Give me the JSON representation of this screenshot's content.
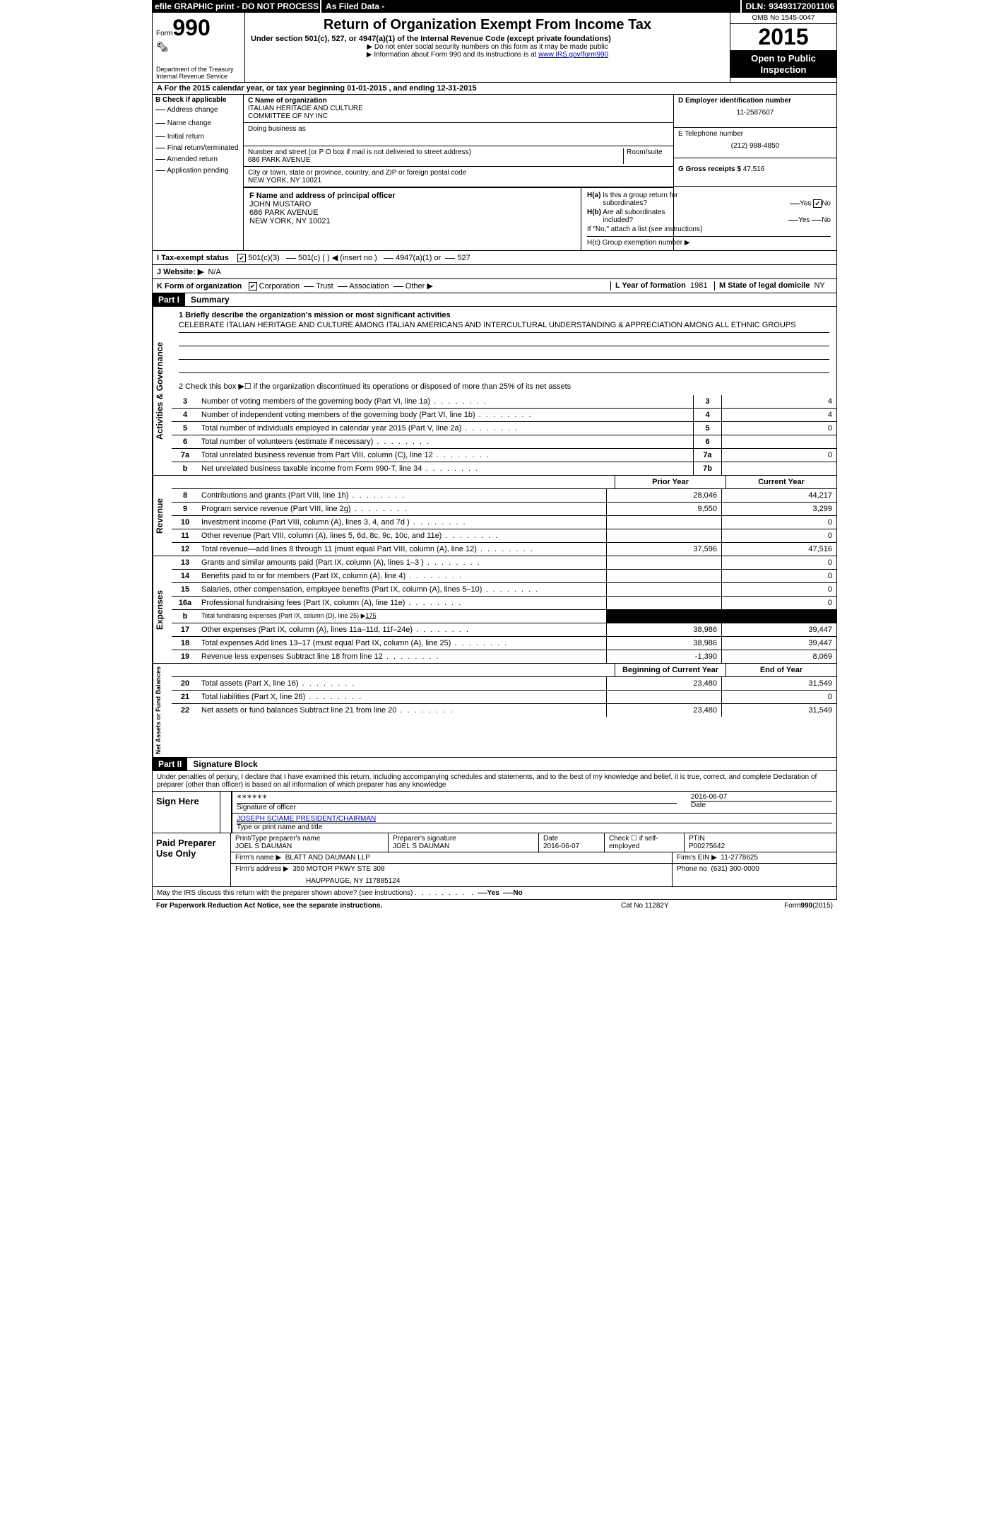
{
  "top_bar": {
    "efile": "efile GRAPHIC print - DO NOT PROCESS",
    "asfiled": "As Filed Data -",
    "dln_label": "DLN:",
    "dln": "93493172001106"
  },
  "header": {
    "form_label": "Form",
    "form_num": "990",
    "dept1": "Department of the Treasury",
    "dept2": "Internal Revenue Service",
    "title": "Return of Organization Exempt From Income Tax",
    "subtitle": "Under section 501(c), 527, or 4947(a)(1) of the Internal Revenue Code (except private foundations)",
    "note1": "▶ Do not enter social security numbers on this form as it may be made public",
    "note2_pre": "▶ Information about Form 990 and its instructions is at ",
    "note2_link": "www.IRS.gov/form990",
    "omb": "OMB No  1545-0047",
    "year": "2015",
    "open_public": "Open to Public Inspection"
  },
  "line_a": {
    "prefix": "A  For the 2015 calendar year, or tax year beginning ",
    "begin": "01-01-2015",
    "mid": "   , and ending ",
    "end": "12-31-2015"
  },
  "col_b": {
    "label": "B  Check if applicable",
    "items": [
      "Address change",
      "Name change",
      "Initial return",
      "Final return/terminated",
      "Amended return",
      "Application pending"
    ]
  },
  "col_c": {
    "name_label": "C Name of organization",
    "name1": "ITALIAN HERITAGE AND CULTURE",
    "name2": "COMMITTEE OF NY INC",
    "dba_label": "Doing business as",
    "addr_label": "Number and street (or P O  box if mail is not delivered to street address)",
    "room_label": "Room/suite",
    "addr": "686 PARK AVENUE",
    "city_label": "City or town, state or province, country, and ZIP or foreign postal code",
    "city": "NEW YORK, NY  10021",
    "f_label": "F   Name and address of principal officer",
    "f_name": "JOHN MUSTARO",
    "f_addr1": "686 PARK AVENUE",
    "f_addr2": "NEW YORK, NY  10021"
  },
  "col_d": {
    "ein_label": "D Employer identification number",
    "ein": "11-2587607",
    "phone_label": "E Telephone number",
    "phone": "(212) 988-4850",
    "gross_label": "G Gross receipts $",
    "gross": "47,516",
    "ha_label": "H(a)  Is this a group return for subordinates?",
    "hb_label": "H(b)  Are all subordinates included?",
    "hb_note": "If \"No,\" attach a list  (see instructions)",
    "hc_label": "H(c)  Group exemption number ▶",
    "yes": "Yes",
    "no": "No"
  },
  "row_i": {
    "label": "I   Tax-exempt status",
    "opt1": "501(c)(3)",
    "opt2": "501(c) (  ) ◀ (insert no )",
    "opt3": "4947(a)(1) or",
    "opt4": "527"
  },
  "row_j": {
    "label": "J  Website: ▶",
    "val": "N/A"
  },
  "row_k": {
    "label": "K Form of organization",
    "opts": [
      "Corporation",
      "Trust",
      "Association",
      "Other ▶"
    ],
    "l_label": "L Year of formation",
    "l_val": "1981",
    "m_label": "M State of legal domicile",
    "m_val": "NY"
  },
  "part1": {
    "header": "Part I",
    "title": "Summary",
    "mission_label": "1 Briefly describe the organization's mission or most significant activities",
    "mission": "CELEBRATE ITALIAN HERITAGE AND CULTURE AMONG ITALIAN AMERICANS AND INTERCULTURAL UNDERSTANDING & APPRECIATION AMONG ALL ETHNIC GROUPS",
    "line2": "2  Check this box ▶☐ if the organization discontinued its operations or disposed of more than 25% of its net assets"
  },
  "governance": {
    "label": "Activities & Governance",
    "rows": [
      {
        "n": "3",
        "t": "Number of voting members of the governing body (Part VI, line 1a)",
        "box": "3",
        "v": "4"
      },
      {
        "n": "4",
        "t": "Number of independent voting members of the governing body (Part VI, line 1b)",
        "box": "4",
        "v": "4"
      },
      {
        "n": "5",
        "t": "Total number of individuals employed in calendar year 2015 (Part V, line 2a)",
        "box": "5",
        "v": "0"
      },
      {
        "n": "6",
        "t": "Total number of volunteers (estimate if necessary)",
        "box": "6",
        "v": ""
      },
      {
        "n": "7a",
        "t": "Total unrelated business revenue from Part VIII, column (C), line 12",
        "box": "7a",
        "v": "0"
      },
      {
        "n": "b",
        "t": "Net unrelated business taxable income from Form 990-T, line 34",
        "box": "7b",
        "v": ""
      }
    ]
  },
  "col_headers": {
    "prior": "Prior Year",
    "current": "Current Year",
    "boy": "Beginning of Current Year",
    "eoy": "End of Year"
  },
  "revenue": {
    "label": "Revenue",
    "rows": [
      {
        "n": "8",
        "t": "Contributions and grants (Part VIII, line 1h)",
        "p": "28,046",
        "c": "44,217"
      },
      {
        "n": "9",
        "t": "Program service revenue (Part VIII, line 2g)",
        "p": "9,550",
        "c": "3,299"
      },
      {
        "n": "10",
        "t": "Investment income (Part VIII, column (A), lines 3, 4, and 7d )",
        "p": "",
        "c": "0"
      },
      {
        "n": "11",
        "t": "Other revenue (Part VIII, column (A), lines 5, 6d, 8c, 9c, 10c, and 11e)",
        "p": "",
        "c": "0"
      },
      {
        "n": "12",
        "t": "Total revenue—add lines 8 through 11 (must equal Part VIII, column (A), line 12)",
        "p": "37,596",
        "c": "47,516"
      }
    ]
  },
  "expenses": {
    "label": "Expenses",
    "rows": [
      {
        "n": "13",
        "t": "Grants and similar amounts paid (Part IX, column (A), lines 1–3 )",
        "p": "",
        "c": "0"
      },
      {
        "n": "14",
        "t": "Benefits paid to or for members (Part IX, column (A), line 4)",
        "p": "",
        "c": "0"
      },
      {
        "n": "15",
        "t": "Salaries, other compensation, employee benefits (Part IX, column (A), lines 5–10)",
        "p": "",
        "c": "0"
      },
      {
        "n": "16a",
        "t": "Professional fundraising fees (Part IX, column (A), line 11e)",
        "p": "",
        "c": "0"
      },
      {
        "n": "b",
        "t": "Total fundraising expenses (Part IX, column (D), line 25) ▶",
        "sub": "175",
        "black": true
      },
      {
        "n": "17",
        "t": "Other expenses (Part IX, column (A), lines 11a–11d, 11f–24e)",
        "p": "38,986",
        "c": "39,447"
      },
      {
        "n": "18",
        "t": "Total expenses  Add lines 13–17 (must equal Part IX, column (A), line 25)",
        "p": "38,986",
        "c": "39,447"
      },
      {
        "n": "19",
        "t": "Revenue less expenses  Subtract line 18 from line 12",
        "p": "-1,390",
        "c": "8,069"
      }
    ]
  },
  "netassets": {
    "label": "Net Assets or Fund Balances",
    "rows": [
      {
        "n": "20",
        "t": "Total assets (Part X, line 16)",
        "p": "23,480",
        "c": "31,549"
      },
      {
        "n": "21",
        "t": "Total liabilities (Part X, line 26)",
        "p": "",
        "c": "0"
      },
      {
        "n": "22",
        "t": "Net assets or fund balances  Subtract line 21 from line 20",
        "p": "23,480",
        "c": "31,549"
      }
    ]
  },
  "part2": {
    "header": "Part II",
    "title": "Signature Block",
    "penalty": "Under penalties of perjury, I declare that I have examined this return, including accompanying schedules and statements, and to the best of my knowledge and belief, it is true, correct, and complete  Declaration of preparer (other than officer) is based on all information of which preparer has any knowledge"
  },
  "sign_here": {
    "label": "Sign Here",
    "stars": "******",
    "sig_label": "Signature of officer",
    "date": "2016-06-07",
    "date_label": "Date",
    "name": "JOSEPH SCIAME  PRESIDENT/CHAIRMAN",
    "name_label": "Type or print name and title"
  },
  "preparer": {
    "label": "Paid Preparer Use Only",
    "r1": {
      "c1_label": "Print/Type preparer's name",
      "c1": "JOEL S DAUMAN",
      "c2_label": "Preparer's signature",
      "c2": "JOEL S DAUMAN",
      "c3_label": "Date",
      "c3": "2016-06-07",
      "c4_label": "Check ☐ if self-employed",
      "c5_label": "PTIN",
      "c5": "P00275642"
    },
    "r2": {
      "firm_label": "Firm's name    ▶",
      "firm": "BLATT AND DAUMAN LLP",
      "ein_label": "Firm's EIN ▶",
      "ein": "11-2778625"
    },
    "r3": {
      "addr_label": "Firm's address ▶",
      "addr1": "350 MOTOR PKWY STE 308",
      "addr2": "HAUPPAUGE, NY  117885124",
      "phone_label": "Phone no",
      "phone": "(631) 300-0000"
    }
  },
  "discuss": {
    "text": "May the IRS discuss this return with the preparer shown above? (see instructions)",
    "yes": "Yes",
    "no": "No"
  },
  "footer": {
    "left": "For Paperwork Reduction Act Notice, see the separate instructions.",
    "mid": "Cat No  11282Y",
    "right_pre": "Form",
    "right_b": "990",
    "right_post": "(2015)"
  }
}
